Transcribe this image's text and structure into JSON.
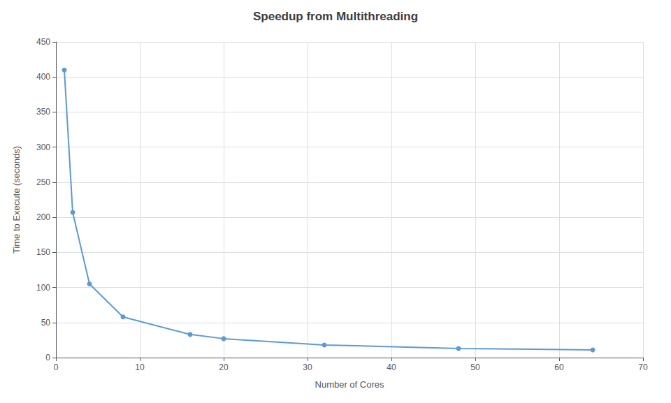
{
  "chart_data": {
    "type": "line",
    "title": "Speedup from Multithreading",
    "xlabel": "Number of Cores",
    "ylabel": "Time to Execute (seconds)",
    "x": [
      1,
      2,
      4,
      8,
      16,
      20,
      32,
      48,
      64
    ],
    "values": [
      410,
      207,
      105,
      58,
      33,
      27,
      18,
      13,
      11
    ],
    "color": "#5B9BD5",
    "marker": "circle",
    "xlim": [
      0,
      70
    ],
    "xticks": [
      0,
      10,
      20,
      30,
      40,
      50,
      60,
      70
    ],
    "ylim": [
      0,
      450
    ],
    "yticks": [
      0,
      50,
      100,
      150,
      200,
      250,
      300,
      350,
      400,
      450
    ],
    "grid": true
  }
}
